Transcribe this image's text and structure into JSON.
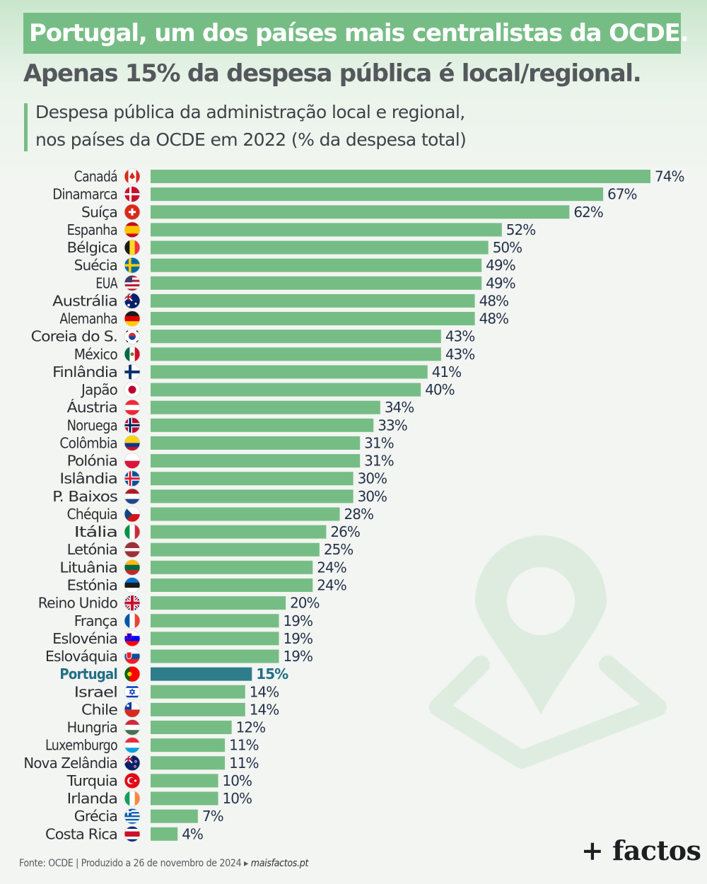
{
  "header": {
    "title": "Portugal, um dos países mais centralistas da OCDE.",
    "subtitle": "Apenas 15% da despesa pública é local/regional.",
    "description_line1": "Despesa pública da administração local e regional,",
    "description_line2": "nos países da OCDE em 2022 (% da despesa total)"
  },
  "colors": {
    "bar": "#76bd85",
    "highlight_bar": "#2e7d8a",
    "highlight_text": "#236f86",
    "label_text": "#2b2f33",
    "value_text": "#24324a"
  },
  "chart_data": {
    "type": "bar",
    "orientation": "horizontal",
    "title": "Despesa pública da administração local e regional, nos países da OCDE em 2022 (% da despesa total)",
    "xlabel": "",
    "ylabel": "",
    "xlim": [
      0,
      74
    ],
    "unit": "%",
    "grid": false,
    "highlight": "Portugal",
    "categories": [
      "Canadá",
      "Dinamarca",
      "Suíça",
      "Espanha",
      "Bélgica",
      "Suécia",
      "EUA",
      "Austrália",
      "Alemanha",
      "Coreia do S.",
      "México",
      "Finlândia",
      "Japão",
      "Áustria",
      "Noruega",
      "Colômbia",
      "Polónia",
      "Islândia",
      "P. Baixos",
      "Chéquia",
      "Itália",
      "Letónia",
      "Lituânia",
      "Estónia",
      "Reino Unido",
      "França",
      "Eslovénia",
      "Eslováquia",
      "Portugal",
      "Israel",
      "Chile",
      "Hungria",
      "Luxemburgo",
      "Nova Zelândia",
      "Turquia",
      "Irlanda",
      "Grécia",
      "Costa Rica"
    ],
    "values": [
      74,
      67,
      62,
      52,
      50,
      49,
      49,
      48,
      48,
      43,
      43,
      41,
      40,
      34,
      33,
      31,
      31,
      30,
      30,
      28,
      26,
      25,
      24,
      24,
      20,
      19,
      19,
      19,
      15,
      14,
      14,
      12,
      11,
      11,
      10,
      10,
      7,
      4
    ],
    "value_labels": [
      "74%",
      "67%",
      "62%",
      "52%",
      "50%",
      "49%",
      "49%",
      "48%",
      "48%",
      "43%",
      "43%",
      "41%",
      "40%",
      "34%",
      "33%",
      "31%",
      "31%",
      "30%",
      "30%",
      "28%",
      "26%",
      "25%",
      "24%",
      "24%",
      "20%",
      "19%",
      "19%",
      "19%",
      "15%",
      "14%",
      "14%",
      "12%",
      "11%",
      "11%",
      "10%",
      "10%",
      "7%",
      "4%"
    ],
    "flag_icons": [
      "canada-flag-icon",
      "denmark-flag-icon",
      "switzerland-flag-icon",
      "spain-flag-icon",
      "belgium-flag-icon",
      "sweden-flag-icon",
      "usa-flag-icon",
      "australia-flag-icon",
      "germany-flag-icon",
      "south-korea-flag-icon",
      "mexico-flag-icon",
      "finland-flag-icon",
      "japan-flag-icon",
      "austria-flag-icon",
      "norway-flag-icon",
      "colombia-flag-icon",
      "poland-flag-icon",
      "iceland-flag-icon",
      "netherlands-flag-icon",
      "czechia-flag-icon",
      "italy-flag-icon",
      "latvia-flag-icon",
      "lithuania-flag-icon",
      "estonia-flag-icon",
      "uk-flag-icon",
      "france-flag-icon",
      "slovenia-flag-icon",
      "slovakia-flag-icon",
      "portugal-flag-icon",
      "israel-flag-icon",
      "chile-flag-icon",
      "hungary-flag-icon",
      "luxembourg-flag-icon",
      "new-zealand-flag-icon",
      "turkey-flag-icon",
      "ireland-flag-icon",
      "greece-flag-icon",
      "costa-rica-flag-icon"
    ]
  },
  "footer": {
    "source": "Fonte: OCDE | Produzido a 26 de novembro de 2024 ▸ ",
    "site": "maisfactos.pt",
    "brand": "+ factos"
  },
  "decoration": {
    "background_icon": "location-pin-map-icon"
  }
}
